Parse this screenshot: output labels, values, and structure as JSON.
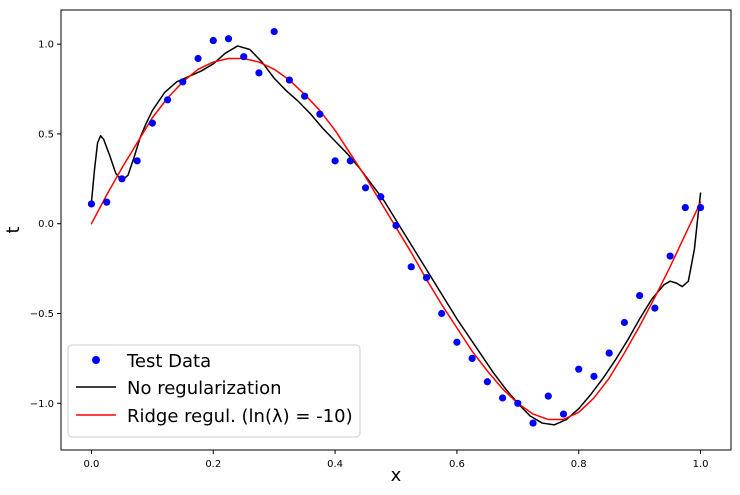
{
  "chart_data": {
    "type": "scatter",
    "title": "",
    "xlabel": "x",
    "ylabel": "t",
    "xlim": [
      -0.05,
      1.05
    ],
    "ylim": [
      -1.26,
      1.19
    ],
    "xticks": [
      0.0,
      0.2,
      0.4,
      0.6,
      0.8,
      1.0
    ],
    "xtick_labels": [
      "0.0",
      "0.2",
      "0.4",
      "0.6",
      "0.8",
      "1.0"
    ],
    "yticks": [
      1.0,
      0.5,
      0.0,
      -0.5,
      -1.0
    ],
    "ytick_labels": [
      "1.0",
      "0.5",
      "0.0",
      "−0.5",
      "−1.0"
    ],
    "grid": false,
    "legend_position": "lower-left",
    "series": [
      {
        "name": "Test Data",
        "kind": "scatter",
        "color": "#0000ff",
        "x": [
          0.0,
          0.025,
          0.05,
          0.075,
          0.1,
          0.125,
          0.15,
          0.175,
          0.2,
          0.225,
          0.25,
          0.275,
          0.3,
          0.325,
          0.35,
          0.375,
          0.4,
          0.425,
          0.45,
          0.475,
          0.5,
          0.525,
          0.55,
          0.575,
          0.6,
          0.625,
          0.65,
          0.675,
          0.7,
          0.725,
          0.75,
          0.775,
          0.8,
          0.825,
          0.85,
          0.875,
          0.9,
          0.925,
          0.95,
          0.975,
          1.0
        ],
        "y": [
          0.11,
          0.12,
          0.25,
          0.35,
          0.56,
          0.69,
          0.79,
          0.92,
          1.02,
          1.03,
          0.93,
          0.84,
          1.07,
          0.8,
          0.71,
          0.61,
          0.35,
          0.35,
          0.2,
          0.15,
          -0.01,
          -0.24,
          -0.3,
          -0.5,
          -0.66,
          -0.75,
          -0.88,
          -0.97,
          -1.0,
          -1.11,
          -0.96,
          -1.06,
          -0.81,
          -0.85,
          -0.72,
          -0.55,
          -0.4,
          -0.47,
          -0.18,
          0.09,
          0.09
        ]
      },
      {
        "name": "No regularization",
        "kind": "line",
        "color": "#000000",
        "x": [
          0.0,
          0.005,
          0.01,
          0.015,
          0.02,
          0.03,
          0.04,
          0.05,
          0.06,
          0.07,
          0.08,
          0.09,
          0.1,
          0.12,
          0.14,
          0.16,
          0.18,
          0.2,
          0.22,
          0.24,
          0.26,
          0.28,
          0.3,
          0.32,
          0.34,
          0.36,
          0.38,
          0.4,
          0.42,
          0.44,
          0.46,
          0.48,
          0.5,
          0.52,
          0.54,
          0.56,
          0.58,
          0.6,
          0.62,
          0.64,
          0.66,
          0.68,
          0.7,
          0.72,
          0.74,
          0.76,
          0.78,
          0.8,
          0.82,
          0.84,
          0.86,
          0.88,
          0.9,
          0.92,
          0.94,
          0.95,
          0.96,
          0.97,
          0.98,
          0.99,
          0.995,
          1.0
        ],
        "y": [
          0.12,
          0.3,
          0.45,
          0.49,
          0.47,
          0.38,
          0.28,
          0.24,
          0.27,
          0.37,
          0.48,
          0.56,
          0.63,
          0.73,
          0.79,
          0.82,
          0.85,
          0.89,
          0.95,
          0.99,
          0.97,
          0.9,
          0.81,
          0.74,
          0.68,
          0.61,
          0.53,
          0.46,
          0.39,
          0.31,
          0.22,
          0.13,
          0.02,
          -0.09,
          -0.2,
          -0.31,
          -0.42,
          -0.53,
          -0.63,
          -0.73,
          -0.83,
          -0.92,
          -1.0,
          -1.07,
          -1.11,
          -1.12,
          -1.09,
          -1.03,
          -0.95,
          -0.86,
          -0.76,
          -0.65,
          -0.53,
          -0.42,
          -0.34,
          -0.32,
          -0.33,
          -0.35,
          -0.32,
          -0.14,
          0.02,
          0.17
        ]
      },
      {
        "name": "Ridge regul. (ln(λ) = -10)",
        "kind": "line",
        "color": "#ff0000",
        "x": [
          0.0,
          0.025,
          0.05,
          0.075,
          0.1,
          0.125,
          0.15,
          0.175,
          0.2,
          0.225,
          0.25,
          0.275,
          0.3,
          0.325,
          0.35,
          0.375,
          0.4,
          0.425,
          0.45,
          0.475,
          0.5,
          0.525,
          0.55,
          0.575,
          0.6,
          0.625,
          0.65,
          0.675,
          0.7,
          0.725,
          0.75,
          0.775,
          0.8,
          0.825,
          0.85,
          0.875,
          0.9,
          0.925,
          0.95,
          0.975,
          1.0
        ],
        "y": [
          0.0,
          0.16,
          0.31,
          0.45,
          0.59,
          0.7,
          0.79,
          0.86,
          0.9,
          0.92,
          0.92,
          0.9,
          0.86,
          0.8,
          0.72,
          0.63,
          0.52,
          0.39,
          0.26,
          0.12,
          -0.02,
          -0.16,
          -0.31,
          -0.45,
          -0.58,
          -0.71,
          -0.82,
          -0.92,
          -1.0,
          -1.06,
          -1.09,
          -1.09,
          -1.05,
          -0.97,
          -0.86,
          -0.72,
          -0.57,
          -0.41,
          -0.24,
          -0.06,
          0.12
        ]
      }
    ]
  }
}
